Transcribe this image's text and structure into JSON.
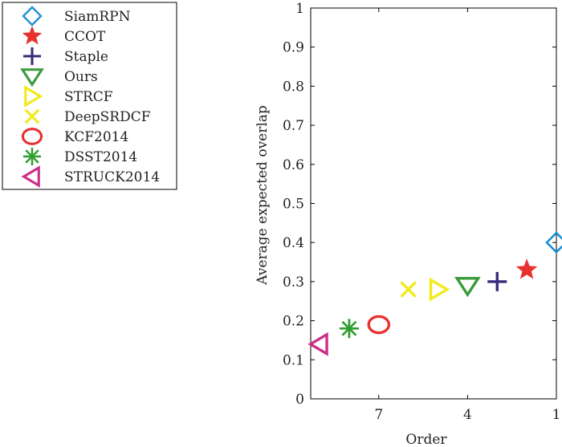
{
  "chart_data": {
    "type": "scatter",
    "title": "",
    "xlabel": "Order",
    "ylabel": "Average expected overlap",
    "xlim": [
      9.3,
      1
    ],
    "ylim": [
      0,
      1
    ],
    "x_ticks": [
      7,
      4,
      1
    ],
    "y_ticks": [
      0,
      0.1,
      0.2,
      0.3,
      0.4,
      0.5,
      0.6,
      0.7,
      0.8,
      0.9,
      1
    ],
    "y_tick_labels": [
      "0",
      "0.1",
      "0.2",
      "0.3",
      "0.4",
      "0.5",
      "0.6",
      "0.7",
      "0.8",
      "0.9",
      "1"
    ],
    "x_tick_labels": [
      "7",
      "4",
      "1"
    ],
    "grid": false,
    "legend_position": "outside-top-left",
    "series": [
      {
        "name": "SiamRPN",
        "marker": "diamond",
        "color": "#1a8fd0",
        "x": 1,
        "y": 0.4
      },
      {
        "name": "CCOT",
        "marker": "star",
        "color": "#e8312f",
        "x": 2,
        "y": 0.33
      },
      {
        "name": "Staple",
        "marker": "plus",
        "color": "#3a2a7c",
        "x": 3,
        "y": 0.3
      },
      {
        "name": "Ours",
        "marker": "triangle-down",
        "color": "#3a9a3a",
        "x": 4,
        "y": 0.29
      },
      {
        "name": "STRCF",
        "marker": "triangle-right",
        "color": "#f2ea1a",
        "x": 5,
        "y": 0.28
      },
      {
        "name": "DeepSRDCF",
        "marker": "x",
        "color": "#f2ea1a",
        "x": 6,
        "y": 0.28
      },
      {
        "name": "KCF2014",
        "marker": "circle",
        "color": "#e8312f",
        "x": 7,
        "y": 0.19
      },
      {
        "name": "DSST2014",
        "marker": "asterisk",
        "color": "#2e9e2e",
        "x": 8,
        "y": 0.18
      },
      {
        "name": "STRUCK2014",
        "marker": "triangle-left",
        "color": "#cc2f87",
        "x": 9,
        "y": 0.14
      }
    ]
  }
}
